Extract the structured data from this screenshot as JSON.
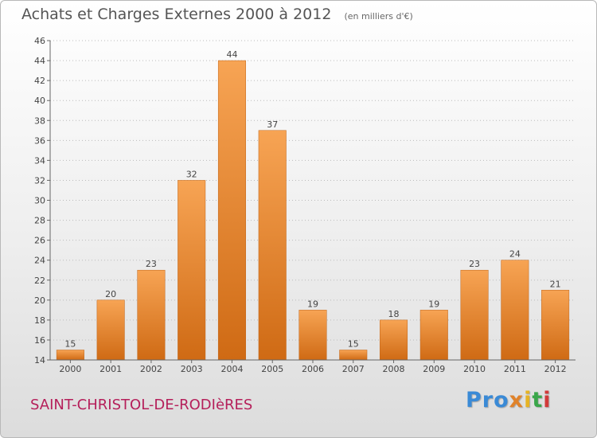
{
  "header": {
    "title": "Achats et Charges Externes 2000 à 2012",
    "subtitle": "(en milliers d'€)"
  },
  "footer": {
    "commune": "SAINT-CHRISTOL-DE-RODIèRES",
    "logo": {
      "p1": "Pro",
      "p2": "x",
      "p3": "i",
      "p4": "t",
      "p5": "i"
    }
  },
  "colors": {
    "bar_light": "#f7a454",
    "bar_dark": "#cf6a14",
    "axis": "#666666",
    "grid": "#bbbbbb"
  },
  "chart_data": {
    "type": "bar",
    "title": "Achats et Charges Externes 2000 à 2012",
    "subtitle": "(en milliers d'€)",
    "categories": [
      "2000",
      "2001",
      "2002",
      "2003",
      "2004",
      "2005",
      "2006",
      "2007",
      "2008",
      "2009",
      "2010",
      "2011",
      "2012"
    ],
    "values": [
      15,
      20,
      23,
      32,
      44,
      37,
      19,
      15,
      18,
      19,
      23,
      24,
      21
    ],
    "ylim": [
      14,
      46
    ],
    "yticks": [
      14,
      16,
      18,
      20,
      22,
      24,
      26,
      28,
      30,
      32,
      34,
      36,
      38,
      40,
      42,
      44,
      46
    ],
    "grid": "horizontal-dotted",
    "data_labels": true
  }
}
